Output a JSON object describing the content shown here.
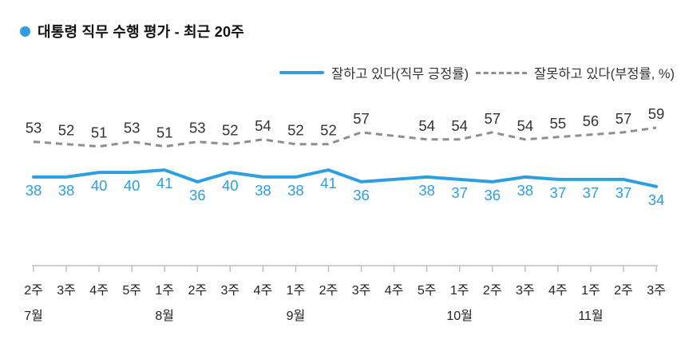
{
  "title": {
    "text": "대통령 직무 수행 평가 - 최근 20주",
    "bullet_color": "#2d9fe1"
  },
  "chart_data": {
    "type": "line",
    "title": "대통령 직무 수행 평가 - 최근 20주",
    "x_tick_labels": [
      "2주",
      "3주",
      "4주",
      "5주",
      "1주",
      "2주",
      "3주",
      "4주",
      "1주",
      "2주",
      "3주",
      "4주",
      "5주",
      "1주",
      "2주",
      "3주",
      "4주",
      "1주",
      "2주",
      "3주"
    ],
    "month_labels": [
      {
        "label": "7월",
        "tick_index": 0
      },
      {
        "label": "8월",
        "tick_index": 4
      },
      {
        "label": "9월",
        "tick_index": 8
      },
      {
        "label": "10월",
        "tick_index": 13
      },
      {
        "label": "11월",
        "tick_index": 17
      }
    ],
    "series": [
      {
        "name": "잘하고 있다(직무 긍정률)",
        "line_style": "solid",
        "color": "#2d9fe1",
        "label_color": "#2d9fe1",
        "label_position": "below",
        "values": [
          38,
          38,
          40,
          40,
          41,
          36,
          40,
          38,
          38,
          41,
          36,
          null,
          38,
          37,
          36,
          38,
          37,
          37,
          37,
          34
        ]
      },
      {
        "name": "잘못하고 있다(부정률, %)",
        "line_style": "dashed",
        "color": "#8e8e8e",
        "label_color": "#333333",
        "label_position": "above",
        "values": [
          53,
          52,
          51,
          53,
          51,
          53,
          52,
          54,
          52,
          52,
          57,
          null,
          54,
          54,
          57,
          54,
          55,
          56,
          57,
          59
        ]
      }
    ],
    "ylim": [
      30,
      63
    ],
    "grid": false,
    "legend_position": "top-right",
    "axis_color": "#bdbdbd",
    "tick_text_color": "#222222"
  }
}
